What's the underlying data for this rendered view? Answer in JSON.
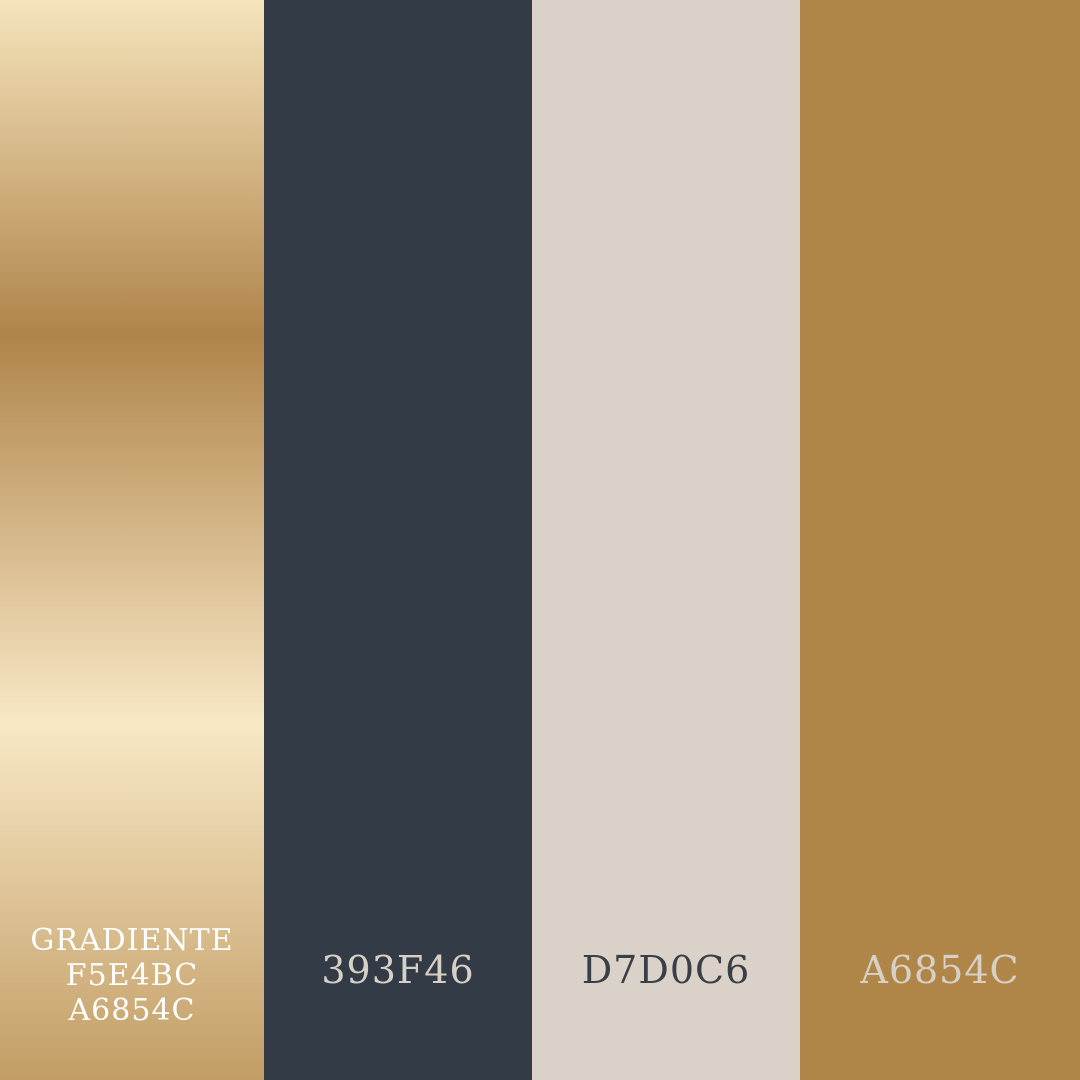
{
  "palette": {
    "swatches": [
      {
        "lines": [
          "GRADIENTE",
          "F5E4BC",
          "A6854C"
        ],
        "gradient_stops": [
          "#F5E4BC",
          "#B0844A",
          "#F8E8C6",
          "#C29D65"
        ],
        "text_color": "#FFFFFF"
      },
      {
        "label": "393F46",
        "color": "#333C46",
        "text_color": "#D7D0C6"
      },
      {
        "label": "D7D0C6",
        "color": "#DAD1C8",
        "text_color": "#393F46"
      },
      {
        "label": "A6854C",
        "color": "#B08648",
        "text_color": "#D7D0C6"
      }
    ]
  }
}
